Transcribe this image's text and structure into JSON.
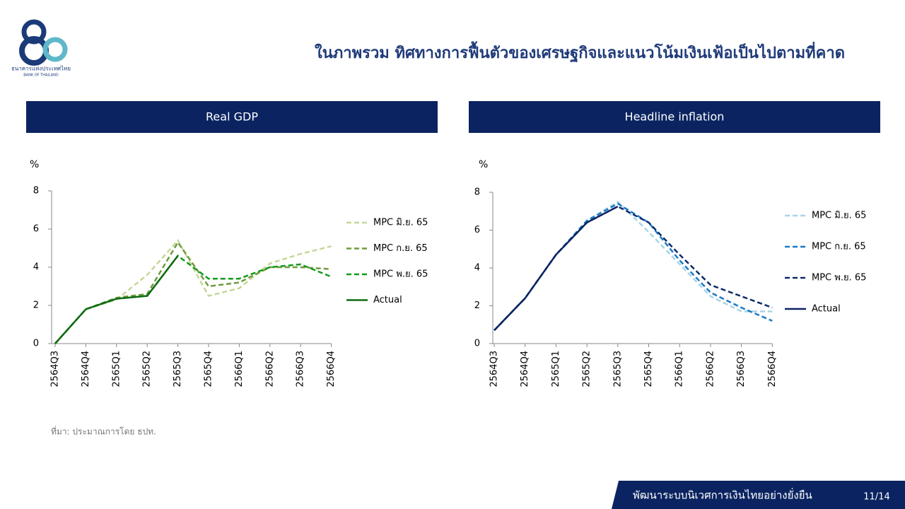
{
  "header": {
    "title": "ในภาพรวม ทิศทางการฟื้นตัวของเศรษฐกิจและแนวโน้มเงินเฟ้อเป็นไปตามที่คาด",
    "logo_text": "ธนาคารแห่งประเทศไทย",
    "logo_subtext": "BANK OF THAILAND"
  },
  "chart_data": [
    {
      "type": "line",
      "title": "Real GDP",
      "y_label": "%",
      "legend": "right",
      "categories": [
        "2564Q3",
        "2564Q4",
        "2565Q1",
        "2565Q2",
        "2565Q3",
        "2565Q4",
        "2566Q1",
        "2566Q2",
        "2566Q3",
        "2566Q4"
      ],
      "ylim": [
        0,
        8
      ],
      "yticks": [
        0,
        2,
        4,
        6,
        8
      ],
      "series": [
        {
          "name": "MPC มิ.ย. 65",
          "color": "#c5d89a",
          "line_style": "dashed",
          "values": [
            0,
            1.8,
            2.3,
            3.6,
            5.4,
            2.5,
            2.9,
            4.2,
            4.7,
            5.1
          ]
        },
        {
          "name": "MPC ก.ย. 65",
          "color": "#6f9a3c",
          "line_style": "dashed",
          "values": [
            0,
            1.8,
            2.4,
            2.6,
            5.3,
            3.0,
            3.2,
            4.0,
            4.0,
            3.9
          ]
        },
        {
          "name": "MPC พ.ย. 65",
          "color": "#119a1a",
          "line_style": "dashed",
          "values": [
            0,
            1.8,
            2.35,
            2.5,
            4.6,
            3.4,
            3.4,
            4.0,
            4.15,
            3.5
          ]
        },
        {
          "name": "Actual",
          "color": "#0e6b12",
          "line_style": "solid",
          "values": [
            0,
            1.8,
            2.35,
            2.5,
            4.6,
            null,
            null,
            null,
            null,
            null
          ]
        }
      ]
    },
    {
      "type": "line",
      "title": "Headline inflation",
      "y_label": "%",
      "legend": "right",
      "categories": [
        "2564Q3",
        "2564Q4",
        "2565Q1",
        "2565Q2",
        "2565Q3",
        "2565Q4",
        "2566Q1",
        "2566Q2",
        "2566Q3",
        "2566Q4"
      ],
      "ylim": [
        0,
        8
      ],
      "yticks": [
        0,
        2,
        4,
        6,
        8
      ],
      "series": [
        {
          "name": "MPC มิ.ย. 65",
          "color": "#a9d4e8",
          "line_style": "dashed",
          "values": [
            0.7,
            2.4,
            4.7,
            6.5,
            7.5,
            5.9,
            4.2,
            2.5,
            1.7,
            1.7
          ]
        },
        {
          "name": "MPC ก.ย. 65",
          "color": "#1a7ac4",
          "line_style": "dashed",
          "values": [
            0.7,
            2.4,
            4.7,
            6.5,
            7.4,
            6.4,
            4.4,
            2.7,
            1.9,
            1.2
          ]
        },
        {
          "name": "MPC พ.ย. 65",
          "color": "#0d2a6b",
          "line_style": "dashed",
          "values": [
            0.7,
            2.4,
            4.7,
            6.4,
            7.25,
            6.4,
            4.7,
            3.1,
            2.5,
            1.9
          ]
        },
        {
          "name": "Actual",
          "color": "#0b2461",
          "line_style": "solid",
          "values": [
            0.7,
            2.4,
            4.7,
            6.4,
            7.25,
            null,
            null,
            null,
            null,
            null
          ]
        }
      ]
    }
  ],
  "source": "ที่มา: ประมาณการโดย ธปท.",
  "footer": {
    "text": "พัฒนาระบบนิเวศการเงินไทยอย่างยั่งยืน",
    "page": "11/14"
  }
}
